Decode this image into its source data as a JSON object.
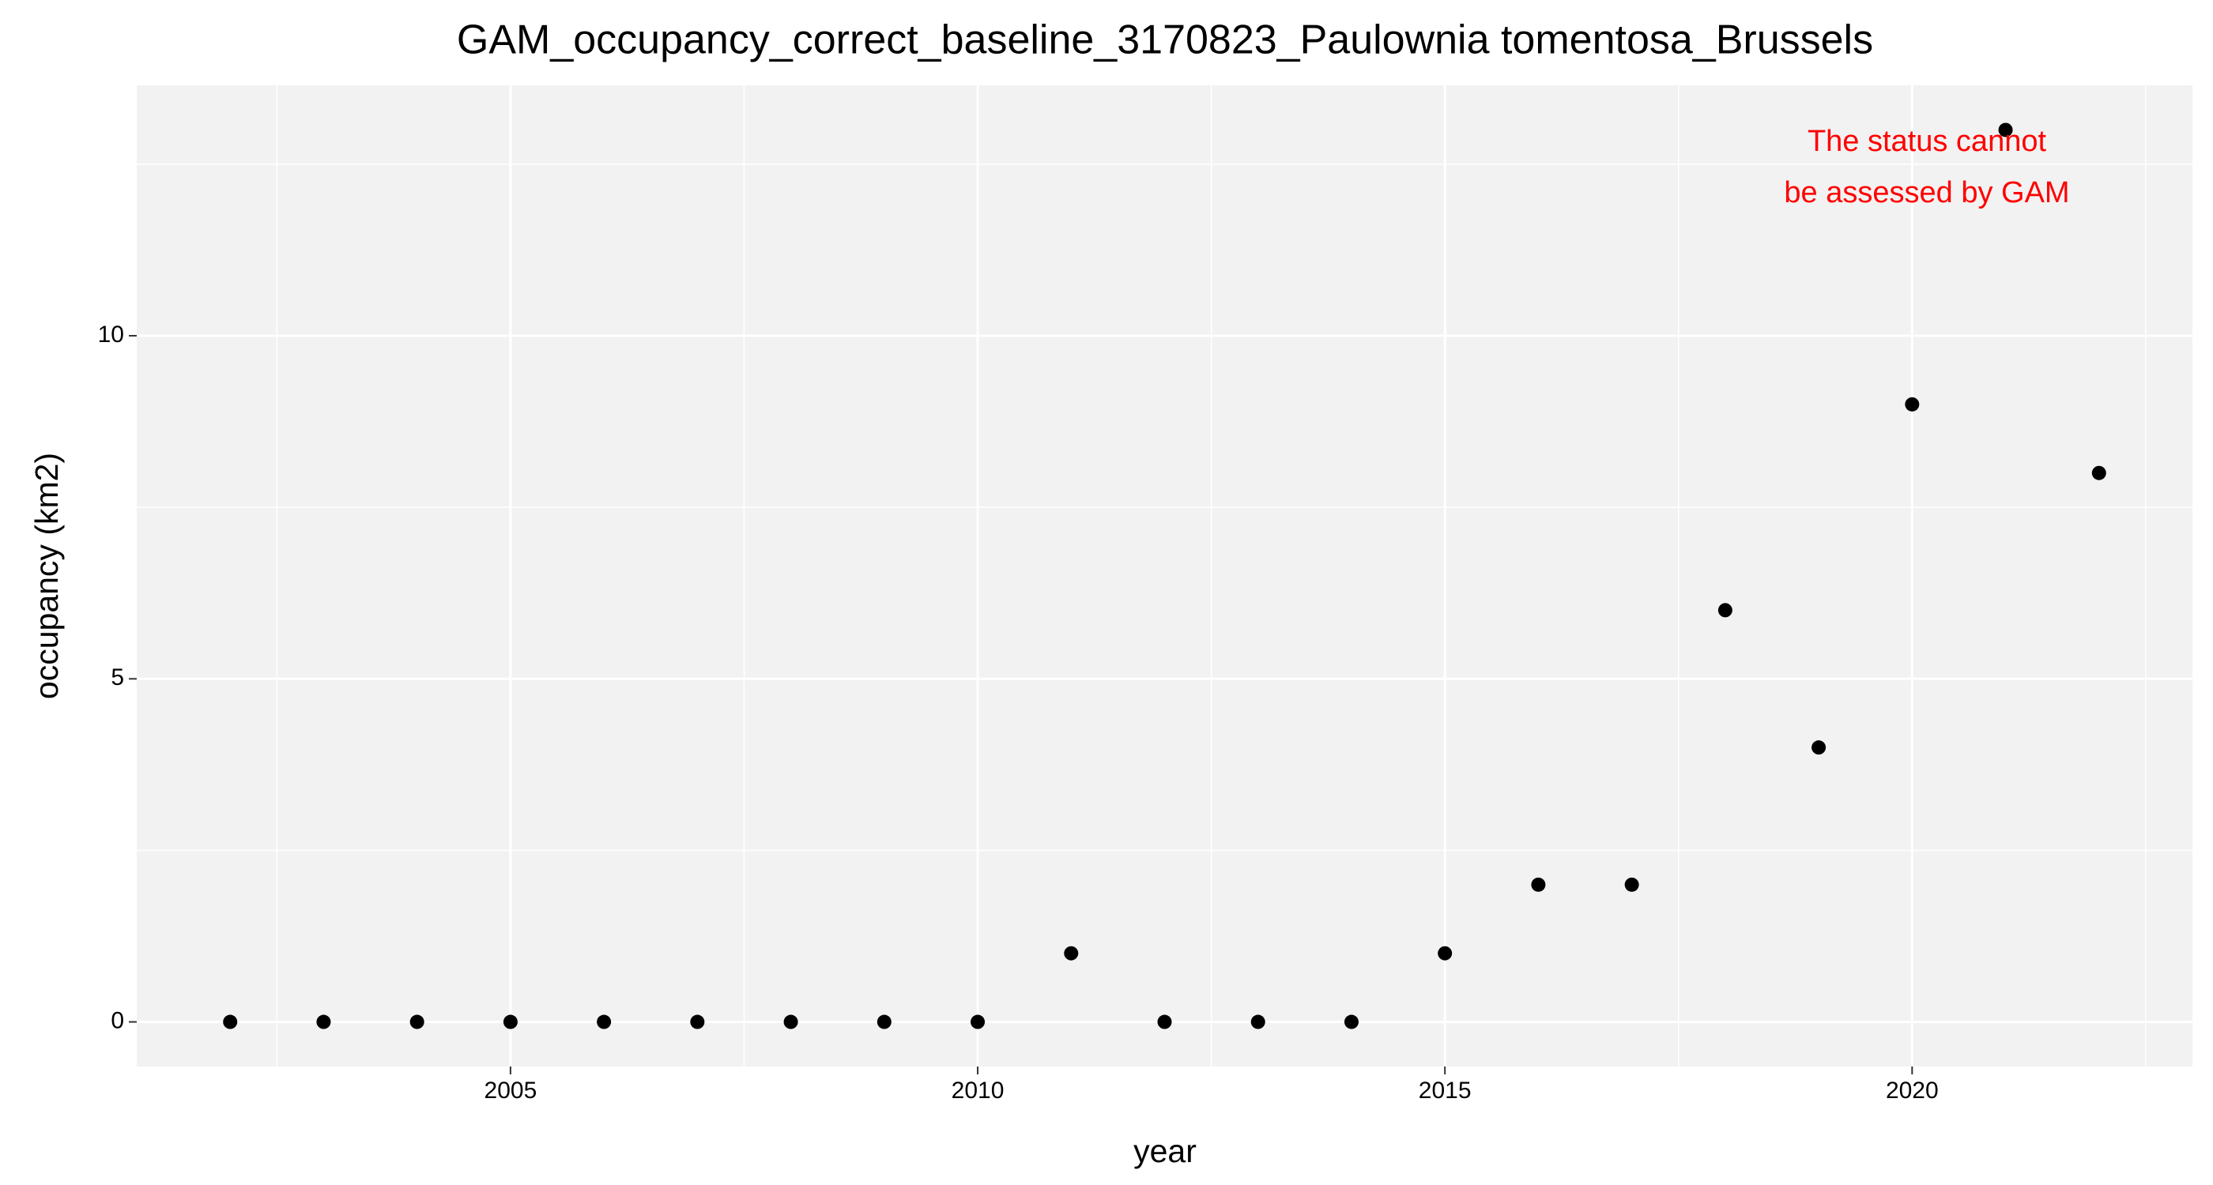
{
  "chart_data": {
    "type": "scatter",
    "title": "GAM_occupancy_correct_baseline_3170823_Paulownia tomentosa_Brussels",
    "xlabel": "year",
    "ylabel": "occupancy (km2)",
    "annotation": [
      "The status cannot",
      "be assessed by GAM"
    ],
    "annotation_color": "#ff0000",
    "x": [
      2002,
      2003,
      2004,
      2005,
      2006,
      2007,
      2008,
      2009,
      2010,
      2011,
      2012,
      2013,
      2014,
      2015,
      2016,
      2017,
      2018,
      2019,
      2020,
      2021,
      2022
    ],
    "values": [
      0,
      0,
      0,
      0,
      0,
      0,
      0,
      0,
      0,
      1,
      0,
      0,
      0,
      1,
      2,
      2,
      6,
      4,
      9,
      13,
      8
    ],
    "color": "#000000",
    "xlim": [
      2001,
      2023
    ],
    "xticks": [
      2005,
      2010,
      2015,
      2020
    ],
    "ylim": [
      -0.65,
      13.65
    ],
    "yticks": [
      0,
      5,
      10
    ],
    "grid": true
  }
}
